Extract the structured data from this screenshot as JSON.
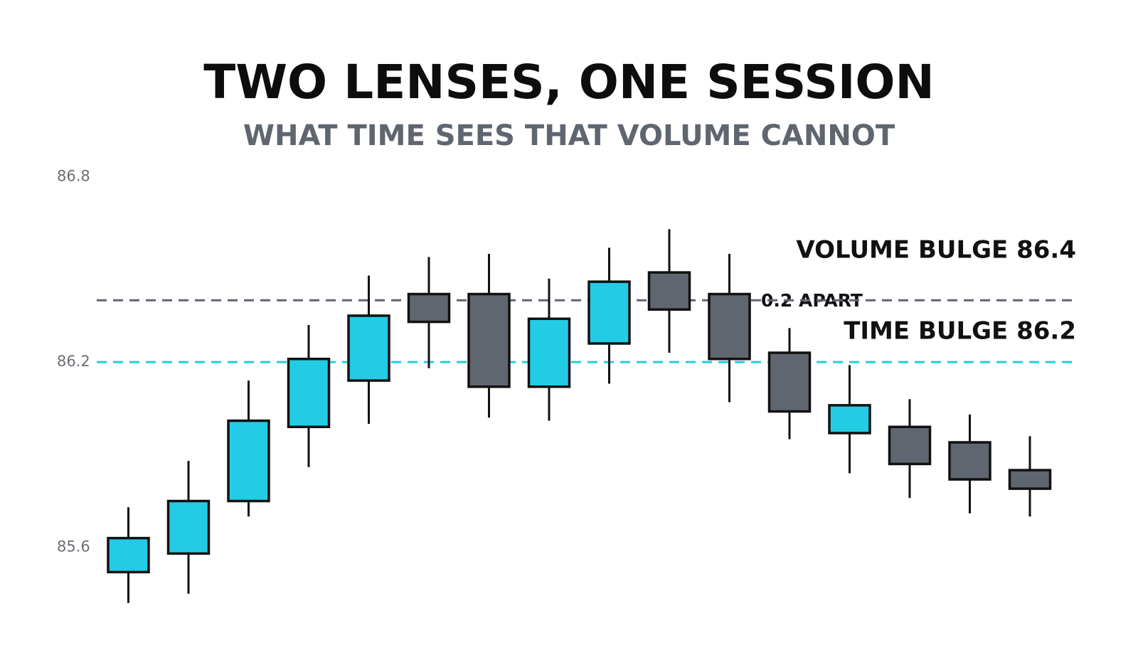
{
  "chart_data": {
    "type": "candlestick",
    "title": "TWO LENSES, ONE SESSION",
    "subtitle": "WHAT TIME SEES THAT VOLUME CANNOT",
    "open": [
      85.52,
      85.58,
      85.75,
      85.99,
      86.14,
      86.42,
      86.42,
      86.12,
      86.26,
      86.49,
      86.42,
      86.23,
      85.97,
      85.99,
      85.94,
      85.85
    ],
    "high": [
      85.73,
      85.88,
      86.14,
      86.32,
      86.48,
      86.54,
      86.55,
      86.47,
      86.57,
      86.63,
      86.55,
      86.31,
      86.19,
      86.08,
      86.03,
      85.96
    ],
    "low": [
      85.42,
      85.45,
      85.7,
      85.86,
      86.0,
      86.18,
      86.02,
      86.01,
      86.13,
      86.23,
      86.07,
      85.95,
      85.84,
      85.76,
      85.71,
      85.7
    ],
    "close": [
      85.63,
      85.75,
      86.01,
      86.21,
      86.35,
      86.33,
      86.12,
      86.34,
      86.46,
      86.37,
      86.21,
      86.04,
      86.06,
      85.87,
      85.82,
      85.79
    ],
    "up_color": "#22cce4",
    "down_color": "#5f6670",
    "ylim": [
      85.3,
      86.9
    ],
    "yticks": [
      85.6,
      86.2,
      86.8
    ],
    "reference_lines": [
      {
        "value": 86.4,
        "label": "VOLUME BULGE 86.4",
        "color": "#5f6670"
      },
      {
        "value": 86.2,
        "label": "TIME BULGE 86.2",
        "color": "#22cce4"
      }
    ],
    "annotation": "0.2 APART"
  }
}
